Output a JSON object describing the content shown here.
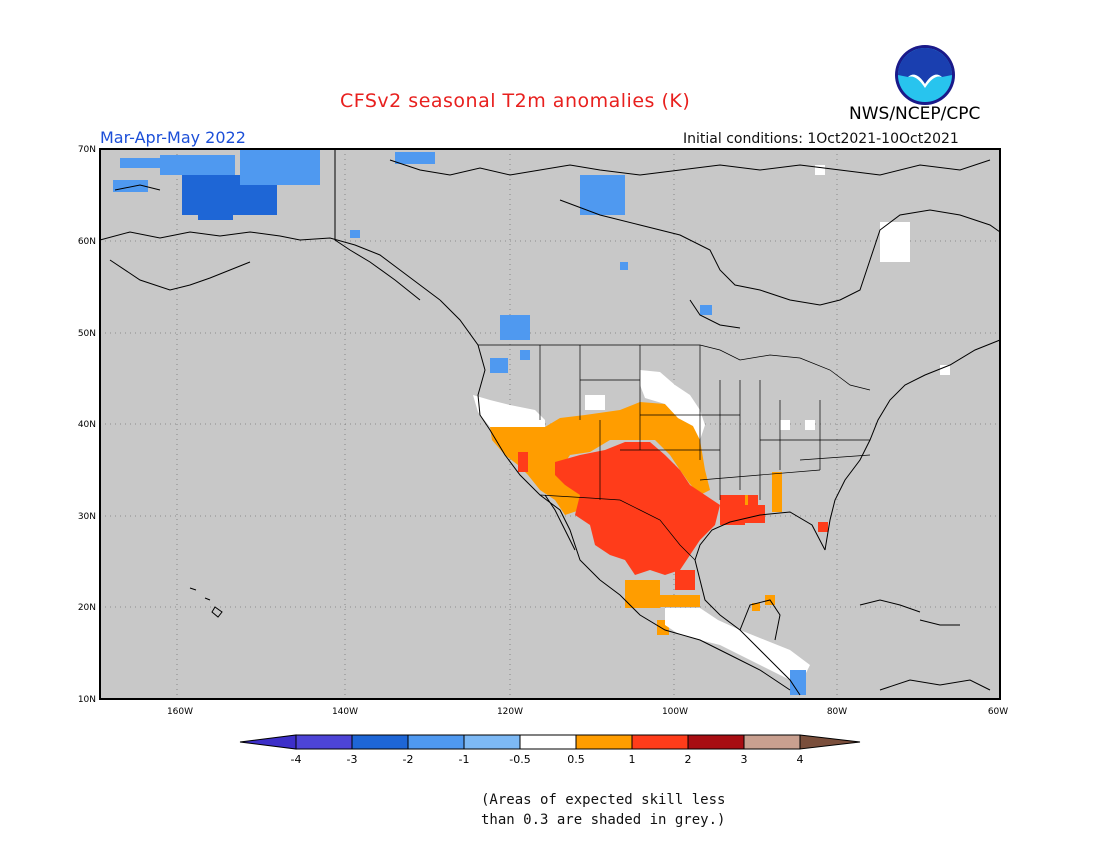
{
  "header": {
    "title": "CFSv2 seasonal T2m anomalies (K)",
    "season": "Mar-Apr-May 2022",
    "initial_conditions": "Initial conditions: 1Oct2021-10Oct2021",
    "agency": "NWS/NCEP/CPC",
    "logo_text": "NOAA"
  },
  "map": {
    "lat_labels": [
      "70N",
      "60N",
      "50N",
      "40N",
      "30N",
      "20N",
      "10N"
    ],
    "lon_labels": [
      "160W",
      "140W",
      "120W",
      "100W",
      "80W",
      "60W"
    ],
    "background_color": "#c8c8c8",
    "grid": "dotted"
  },
  "legend": {
    "ticks": [
      "-4",
      "-3",
      "-2",
      "-1",
      "-0.5",
      "0.5",
      "1",
      "2",
      "3",
      "4"
    ],
    "colors": [
      "#3d2fc9",
      "#4d44d6",
      "#1e66d6",
      "#4f99f0",
      "#7db9f5",
      "#ffffff",
      "#ff9d00",
      "#ff3c1a",
      "#a80d12",
      "#c9a090",
      "#7a4e3b"
    ]
  },
  "footnote": {
    "line1": "(Areas of expected skill less",
    "line2": "than 0.3 are shaded in grey.)"
  }
}
